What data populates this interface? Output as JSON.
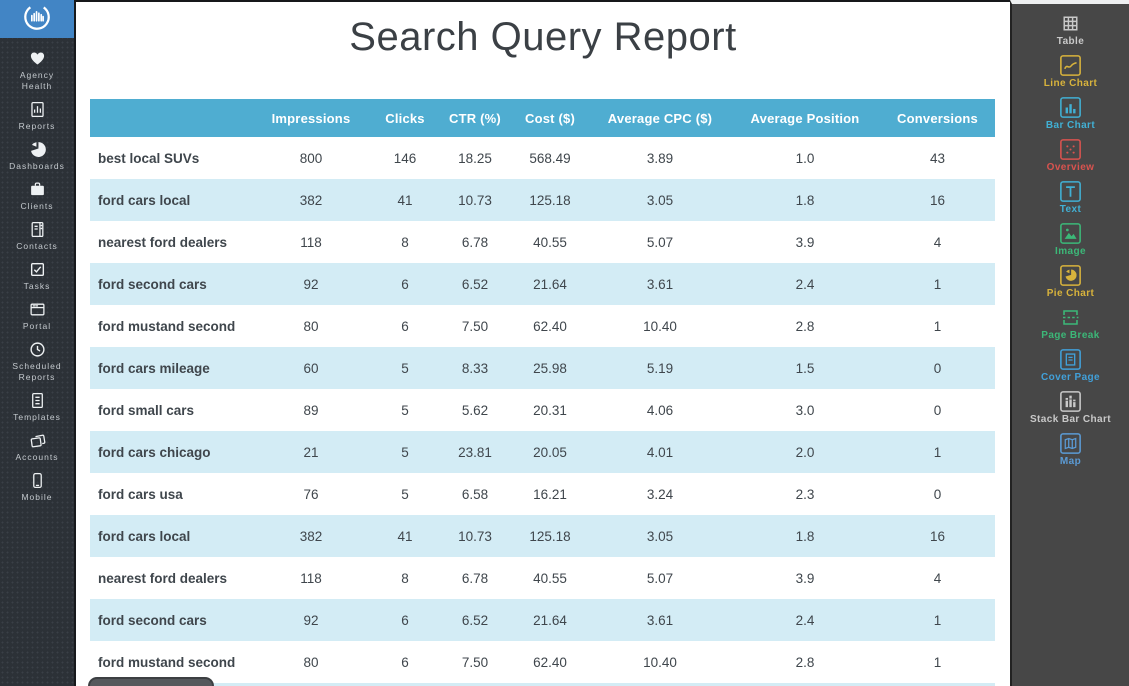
{
  "colors": {
    "left_sidebar_bg": "#2c3137",
    "logo_bg": "#4285c5",
    "right_sidebar_bg": "#474747",
    "table_header_bg": "#4fadd1",
    "row_stripe_bg": "#d3ecf5",
    "title_color": "#3b4045",
    "body_text": "#3f464c",
    "sidebar_label": "#c4c9ce"
  },
  "left_sidebar": {
    "logo_icon": "chart-circle-logo",
    "items": [
      {
        "label": "Agency Health",
        "icon": "heart"
      },
      {
        "label": "Reports",
        "icon": "report"
      },
      {
        "label": "Dashboards",
        "icon": "pie"
      },
      {
        "label": "Clients",
        "icon": "briefcase"
      },
      {
        "label": "Contacts",
        "icon": "contacts"
      },
      {
        "label": "Tasks",
        "icon": "tasks"
      },
      {
        "label": "Portal",
        "icon": "portal"
      },
      {
        "label": "Scheduled Reports",
        "icon": "clock"
      },
      {
        "label": "Templates",
        "icon": "templates"
      },
      {
        "label": "Accounts",
        "icon": "accounts"
      },
      {
        "label": "Mobile",
        "icon": "mobile"
      }
    ]
  },
  "main": {
    "title": "Search Query Report",
    "table": {
      "columns": [
        "",
        "Impressions",
        "Clicks",
        "CTR (%)",
        "Cost ($)",
        "Average CPC ($)",
        "Average Position",
        "Conversions"
      ],
      "rows": [
        [
          "best local SUVs",
          "800",
          "146",
          "18.25",
          "568.49",
          "3.89",
          "1.0",
          "43"
        ],
        [
          "ford cars local",
          "382",
          "41",
          "10.73",
          "125.18",
          "3.05",
          "1.8",
          "16"
        ],
        [
          "nearest ford dealers",
          "118",
          "8",
          "6.78",
          "40.55",
          "5.07",
          "3.9",
          "4"
        ],
        [
          "ford second cars",
          "92",
          "6",
          "6.52",
          "21.64",
          "3.61",
          "2.4",
          "1"
        ],
        [
          "ford mustand second",
          "80",
          "6",
          "7.50",
          "62.40",
          "10.40",
          "2.8",
          "1"
        ],
        [
          "ford cars mileage",
          "60",
          "5",
          "8.33",
          "25.98",
          "5.19",
          "1.5",
          "0"
        ],
        [
          "ford small cars",
          "89",
          "5",
          "5.62",
          "20.31",
          "4.06",
          "3.0",
          "0"
        ],
        [
          "ford cars chicago",
          "21",
          "5",
          "23.81",
          "20.05",
          "4.01",
          "2.0",
          "1"
        ],
        [
          "ford cars usa",
          "76",
          "5",
          "6.58",
          "16.21",
          "3.24",
          "2.3",
          "0"
        ],
        [
          "ford cars local",
          "382",
          "41",
          "10.73",
          "125.18",
          "3.05",
          "1.8",
          "16"
        ],
        [
          "nearest ford dealers",
          "118",
          "8",
          "6.78",
          "40.55",
          "5.07",
          "3.9",
          "4"
        ],
        [
          "ford second cars",
          "92",
          "6",
          "6.52",
          "21.64",
          "3.61",
          "2.4",
          "1"
        ],
        [
          "ford mustand second",
          "80",
          "6",
          "7.50",
          "62.40",
          "10.40",
          "2.8",
          "1"
        ]
      ]
    }
  },
  "right_sidebar": {
    "items": [
      {
        "label": "Table",
        "icon": "table",
        "color": "#c9c9c9"
      },
      {
        "label": "Line Chart",
        "icon": "line-chart",
        "color": "#d8b33c"
      },
      {
        "label": "Bar Chart",
        "icon": "bar-chart",
        "color": "#41b0d4"
      },
      {
        "label": "Overview",
        "icon": "overview",
        "color": "#d9534f"
      },
      {
        "label": "Text",
        "icon": "text",
        "color": "#41b0d4"
      },
      {
        "label": "Image",
        "icon": "image",
        "color": "#3cb878"
      },
      {
        "label": "Pie Chart",
        "icon": "pie-chart",
        "color": "#d8b33c"
      },
      {
        "label": "Page Break",
        "icon": "page-break",
        "color": "#3cb878"
      },
      {
        "label": "Cover Page",
        "icon": "cover-page",
        "color": "#41a0d9"
      },
      {
        "label": "Stack Bar Chart",
        "icon": "stack-bar-chart",
        "color": "#c9c9c9"
      },
      {
        "label": "Map",
        "icon": "map",
        "color": "#5b9bd5"
      }
    ]
  }
}
